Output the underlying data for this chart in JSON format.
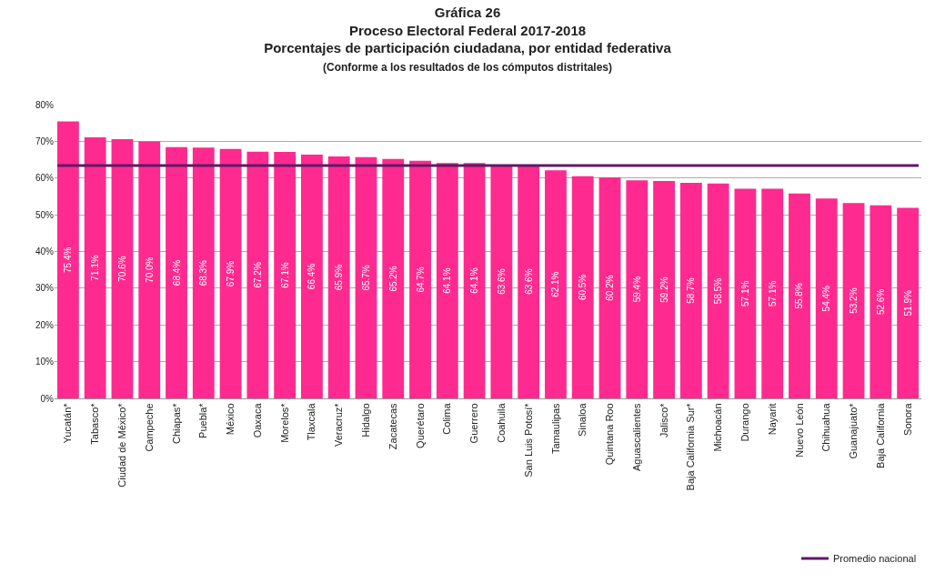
{
  "chart_data": {
    "type": "bar",
    "title": "Gráfica 26\nProceso Electoral Federal 2017-2018\nPorcentajes de participación ciudadana, por entidad federativa",
    "subtitle": "(Conforme a los resultados de los cómputos distritales)",
    "categories": [
      "Yucatán*",
      "Tabasco*",
      "Ciudad de México*",
      "Campeche",
      "Chiapas*",
      "Puebla*",
      "México",
      "Oaxaca",
      "Morelos*",
      "Tlaxcala",
      "Veracruz*",
      "Hidalgo",
      "Zacatecas",
      "Querétaro",
      "Colima",
      "Guerrero",
      "Coahuila",
      "San Luis Potosí*",
      "Tamaulipas",
      "Sinaloa",
      "Quintana Roo",
      "Aguascalientes",
      "Jalisco*",
      "Baja California Sur*",
      "Michoacán",
      "Durango",
      "Nayarit",
      "Nuevo León",
      "Chihuahua",
      "Guanajuato*",
      "Baja California",
      "Sonora"
    ],
    "values": [
      75.4,
      71.1,
      70.6,
      70.0,
      68.4,
      68.3,
      67.9,
      67.2,
      67.1,
      66.4,
      65.9,
      65.7,
      65.2,
      64.7,
      64.1,
      64.1,
      63.6,
      63.6,
      62.1,
      60.5,
      60.2,
      59.4,
      59.2,
      58.7,
      58.5,
      57.1,
      57.1,
      55.8,
      54.4,
      53.2,
      52.6,
      51.9
    ],
    "value_labels": [
      "75.4%",
      "71.1%",
      "70.6%",
      "70.0%",
      "68.4%",
      "68.3%",
      "67.9%",
      "67.2%",
      "67.1%",
      "66.4%",
      "65.9%",
      "65.7%",
      "65.2%",
      "64.7%",
      "64.1%",
      "64.1%",
      "63.6%",
      "63.6%",
      "62.1%",
      "60.5%",
      "60.2%",
      "59.4%",
      "59.2%",
      "58.7%",
      "58.5%",
      "57.1%",
      "57.1%",
      "55.8%",
      "54.4%",
      "53.2%",
      "52.6%",
      "51.9%"
    ],
    "color": "#ff2a8f",
    "ylim": [
      0,
      80
    ],
    "yticks": [
      {
        "value": 0,
        "label": "0%"
      },
      {
        "value": 10,
        "label": "10%"
      },
      {
        "value": 20,
        "label": "20%"
      },
      {
        "value": 30,
        "label": "30%"
      },
      {
        "value": 40,
        "label": "40%"
      },
      {
        "value": 50,
        "label": "50%"
      },
      {
        "value": 60,
        "label": "60%"
      },
      {
        "value": 70,
        "label": "70%"
      },
      {
        "value": 80,
        "label": "80%"
      }
    ],
    "grid": "y",
    "ref_lines": [
      {
        "axis": "y",
        "value": 63.4,
        "label": "Promedio nacional",
        "color": "#5e1a66"
      }
    ],
    "legend": "bottom right"
  }
}
